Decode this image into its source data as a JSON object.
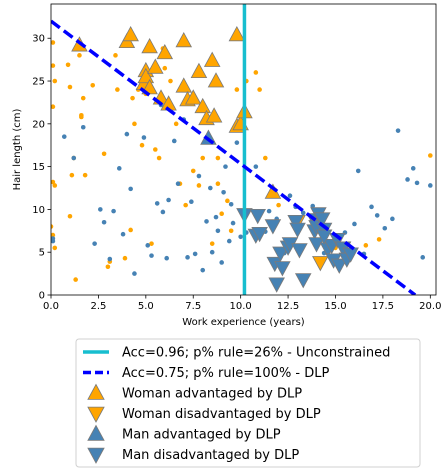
{
  "chart_data": {
    "type": "scatter",
    "xlabel": "Work experience (years)",
    "ylabel": "Hair length (cm)",
    "xlim": [
      0,
      20.3
    ],
    "ylim": [
      0,
      34
    ],
    "x_ticks": [
      "0.0",
      "2.5",
      "5.0",
      "7.5",
      "10.0",
      "12.5",
      "15.0",
      "17.5",
      "20.0"
    ],
    "y_ticks": [
      "0",
      "5",
      "10",
      "15",
      "20",
      "25",
      "30"
    ],
    "grid": false,
    "legend_position": "below",
    "colors": {
      "woman": "#ffa500",
      "man": "#4682b4",
      "unconstrained": "#17becf",
      "dlp": "#0000ff"
    },
    "unconstrained_boundary": {
      "x": 10.2
    },
    "dlp_boundary": {
      "x": [
        0,
        19.2
      ],
      "y": [
        32,
        0
      ]
    },
    "legend": [
      "Acc=0.96; p% rule=26% - Unconstrained",
      "Acc=0.75; p% rule=100% - DLP",
      "Woman advantaged by DLP",
      "Woman disadvantaged by DLP",
      "Man advantaged by DLP",
      "Man disadvantaged by DLP"
    ],
    "women_points": [
      [
        0.1,
        29.5
      ],
      [
        0.1,
        26.8
      ],
      [
        0.2,
        25.0
      ],
      [
        0.1,
        22.0
      ],
      [
        0.1,
        13.2
      ],
      [
        0.2,
        12.8
      ],
      [
        0.0,
        8.0
      ],
      [
        0.2,
        5.5
      ],
      [
        0.1,
        7.0
      ],
      [
        0.9,
        26.9
      ],
      [
        1.0,
        24.3
      ],
      [
        1.2,
        16.0
      ],
      [
        1.1,
        14.0
      ],
      [
        1.0,
        9.2
      ],
      [
        1.3,
        1.8
      ],
      [
        1.6,
        21.0
      ],
      [
        1.5,
        28.0
      ],
      [
        1.7,
        23.0
      ],
      [
        1.6,
        20.8
      ],
      [
        1.8,
        14.0
      ],
      [
        2.2,
        24.5
      ],
      [
        2.8,
        16.5
      ],
      [
        3.1,
        3.9
      ],
      [
        3.0,
        3.3
      ],
      [
        3.4,
        28.0
      ],
      [
        3.5,
        24.0
      ],
      [
        3.9,
        4.3
      ],
      [
        4.2,
        7.6
      ],
      [
        4.3,
        23.0
      ],
      [
        4.4,
        20.0
      ],
      [
        4.6,
        24.0
      ],
      [
        4.8,
        17.5
      ],
      [
        5.0,
        23.5
      ],
      [
        5.3,
        6.0
      ],
      [
        5.5,
        17.0
      ],
      [
        5.7,
        16.0
      ],
      [
        5.9,
        28.8
      ],
      [
        6.0,
        26.5
      ],
      [
        6.3,
        25.0
      ],
      [
        6.6,
        20.0
      ],
      [
        6.8,
        13.0
      ],
      [
        7.1,
        10.5
      ],
      [
        7.5,
        14.5
      ],
      [
        7.8,
        12.8
      ],
      [
        8.0,
        16.0
      ],
      [
        8.5,
        6.0
      ],
      [
        8.8,
        13.0
      ],
      [
        8.8,
        16.0
      ],
      [
        9.0,
        9.5
      ],
      [
        9.3,
        11.0
      ],
      [
        9.5,
        7.5
      ],
      [
        9.8,
        24.0
      ],
      [
        10.0,
        19.5
      ],
      [
        10.3,
        25.0
      ],
      [
        10.8,
        26.0
      ],
      [
        11.0,
        24.0
      ],
      [
        11.3,
        16.0
      ],
      [
        11.8,
        12.3
      ],
      [
        12.0,
        10.5
      ],
      [
        15.0,
        5.5
      ],
      [
        16.6,
        5.8
      ],
      [
        17.3,
        6.5
      ],
      [
        20.0,
        16.3
      ]
    ],
    "men_points": [
      [
        0.1,
        6.3
      ],
      [
        0.1,
        6.6
      ],
      [
        1.2,
        16.0
      ],
      [
        1.7,
        19.6
      ],
      [
        2.3,
        6.0
      ],
      [
        2.6,
        10.0
      ],
      [
        2.8,
        8.5
      ],
      [
        3.1,
        4.2
      ],
      [
        3.3,
        9.8
      ],
      [
        3.6,
        14.8
      ],
      [
        3.8,
        7.1
      ],
      [
        4.0,
        18.8
      ],
      [
        4.2,
        12.4
      ],
      [
        4.4,
        2.5
      ],
      [
        4.9,
        18.4
      ],
      [
        5.1,
        5.8
      ],
      [
        5.3,
        4.6
      ],
      [
        5.6,
        10.7
      ],
      [
        5.8,
        22.2
      ],
      [
        5.9,
        9.7
      ],
      [
        6.1,
        4.3
      ],
      [
        6.2,
        11.1
      ],
      [
        6.5,
        18.0
      ],
      [
        6.7,
        13.0
      ],
      [
        7.0,
        20.5
      ],
      [
        7.2,
        4.4
      ],
      [
        7.4,
        10.9
      ],
      [
        7.6,
        4.8
      ],
      [
        7.8,
        13.9
      ],
      [
        8.0,
        2.9
      ],
      [
        8.2,
        8.6
      ],
      [
        8.4,
        12.5
      ],
      [
        8.5,
        5.0
      ],
      [
        8.7,
        9.1
      ],
      [
        8.8,
        7.5
      ],
      [
        9.0,
        3.8
      ],
      [
        9.1,
        12.0
      ],
      [
        9.2,
        15.0
      ],
      [
        9.4,
        6.3
      ],
      [
        9.5,
        10.6
      ],
      [
        9.6,
        8.4
      ],
      [
        9.8,
        17.8
      ],
      [
        10.0,
        6.8
      ],
      [
        10.3,
        7.3
      ],
      [
        10.8,
        15.0
      ],
      [
        11.0,
        9.4
      ],
      [
        11.3,
        7.4
      ],
      [
        11.5,
        9.8
      ],
      [
        11.9,
        8.9
      ],
      [
        12.3,
        4.9
      ],
      [
        12.6,
        11.6
      ],
      [
        12.9,
        10.3
      ],
      [
        13.3,
        9.6
      ],
      [
        13.8,
        10.4
      ],
      [
        14.4,
        4.9
      ],
      [
        15.0,
        6.8
      ],
      [
        15.5,
        7.3
      ],
      [
        16.0,
        8.3
      ],
      [
        16.5,
        4.8
      ],
      [
        16.9,
        10.3
      ],
      [
        17.2,
        9.3
      ],
      [
        17.6,
        7.8
      ],
      [
        18.0,
        8.9
      ],
      [
        18.3,
        19.2
      ],
      [
        18.8,
        13.5
      ],
      [
        19.1,
        14.8
      ],
      [
        19.3,
        13.1
      ],
      [
        19.6,
        4.4
      ],
      [
        20.0,
        12.8
      ],
      [
        0.7,
        18.5
      ],
      [
        16.2,
        14.5
      ]
    ],
    "woman_advantaged": [
      [
        1.5,
        29.2
      ],
      [
        4.0,
        29.6
      ],
      [
        4.2,
        30.4
      ],
      [
        5.0,
        26.2
      ],
      [
        5.2,
        29.0
      ],
      [
        6.0,
        28.3
      ],
      [
        7.0,
        29.7
      ],
      [
        4.9,
        24.7
      ],
      [
        5.0,
        25.5
      ],
      [
        5.2,
        24.2
      ],
      [
        5.5,
        26.6
      ],
      [
        5.8,
        23.0
      ],
      [
        6.2,
        22.3
      ],
      [
        7.0,
        24.4
      ],
      [
        7.2,
        22.8
      ],
      [
        7.5,
        23.0
      ],
      [
        7.8,
        26.1
      ],
      [
        8.0,
        22.0
      ],
      [
        8.2,
        20.6
      ],
      [
        8.5,
        27.4
      ],
      [
        8.6,
        20.9
      ],
      [
        8.7,
        25.0
      ],
      [
        9.8,
        30.4
      ],
      [
        9.8,
        19.7
      ],
      [
        10.0,
        20.0
      ],
      [
        10.2,
        21.4
      ],
      [
        11.7,
        12.0
      ]
    ],
    "woman_disadvantaged": [
      [
        13.0,
        8.6
      ],
      [
        14.2,
        3.8
      ]
    ],
    "man_advantaged": [
      [
        8.3,
        18.3
      ]
    ],
    "man_disadvantaged": [
      [
        10.2,
        9.4
      ],
      [
        10.8,
        7.0
      ],
      [
        10.9,
        9.3
      ],
      [
        11.0,
        7.2
      ],
      [
        11.7,
        8.1
      ],
      [
        11.8,
        3.7
      ],
      [
        11.9,
        1.3
      ],
      [
        12.1,
        4.9
      ],
      [
        12.2,
        3.2
      ],
      [
        12.5,
        5.6
      ],
      [
        12.6,
        6.0
      ],
      [
        12.9,
        8.6
      ],
      [
        13.0,
        7.7
      ],
      [
        13.1,
        5.3
      ],
      [
        13.3,
        1.8
      ],
      [
        13.9,
        8.8
      ],
      [
        13.9,
        7.5
      ],
      [
        14.0,
        8.0
      ],
      [
        14.0,
        6.0
      ],
      [
        14.1,
        9.5
      ],
      [
        14.3,
        8.9
      ],
      [
        14.4,
        7.7
      ],
      [
        14.6,
        5.4
      ],
      [
        14.8,
        5.8
      ],
      [
        14.9,
        4.1
      ],
      [
        15.1,
        6.5
      ],
      [
        15.2,
        3.5
      ],
      [
        15.4,
        5.5
      ],
      [
        15.6,
        4.2
      ],
      [
        15.8,
        4.8
      ],
      [
        14.4,
        6.9
      ]
    ]
  }
}
